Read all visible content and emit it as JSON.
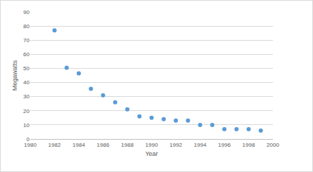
{
  "chart_data": {
    "type": "scatter",
    "x_label": "Year",
    "y_label": "Megawatts",
    "x": [
      1982,
      1983,
      1984,
      1985,
      1986,
      1987,
      1988,
      1989,
      1990,
      1991,
      1992,
      1993,
      1994,
      1995,
      1996,
      1997,
      1998,
      1999
    ],
    "values": [
      77,
      50.5,
      46.5,
      35.5,
      31,
      26,
      21,
      16,
      15,
      14,
      13,
      13,
      10,
      10,
      7,
      7,
      7,
      6
    ],
    "color": "#5b9bd5",
    "marker": "circle",
    "xlim": [
      1980,
      2000
    ],
    "xticks": [
      1980,
      1982,
      1984,
      1986,
      1988,
      1990,
      1992,
      1994,
      1996,
      1998,
      2000
    ],
    "ylim": [
      0,
      90
    ],
    "yticks": [
      0,
      10,
      20,
      30,
      40,
      50,
      60,
      70,
      80,
      90
    ],
    "grid": true
  }
}
